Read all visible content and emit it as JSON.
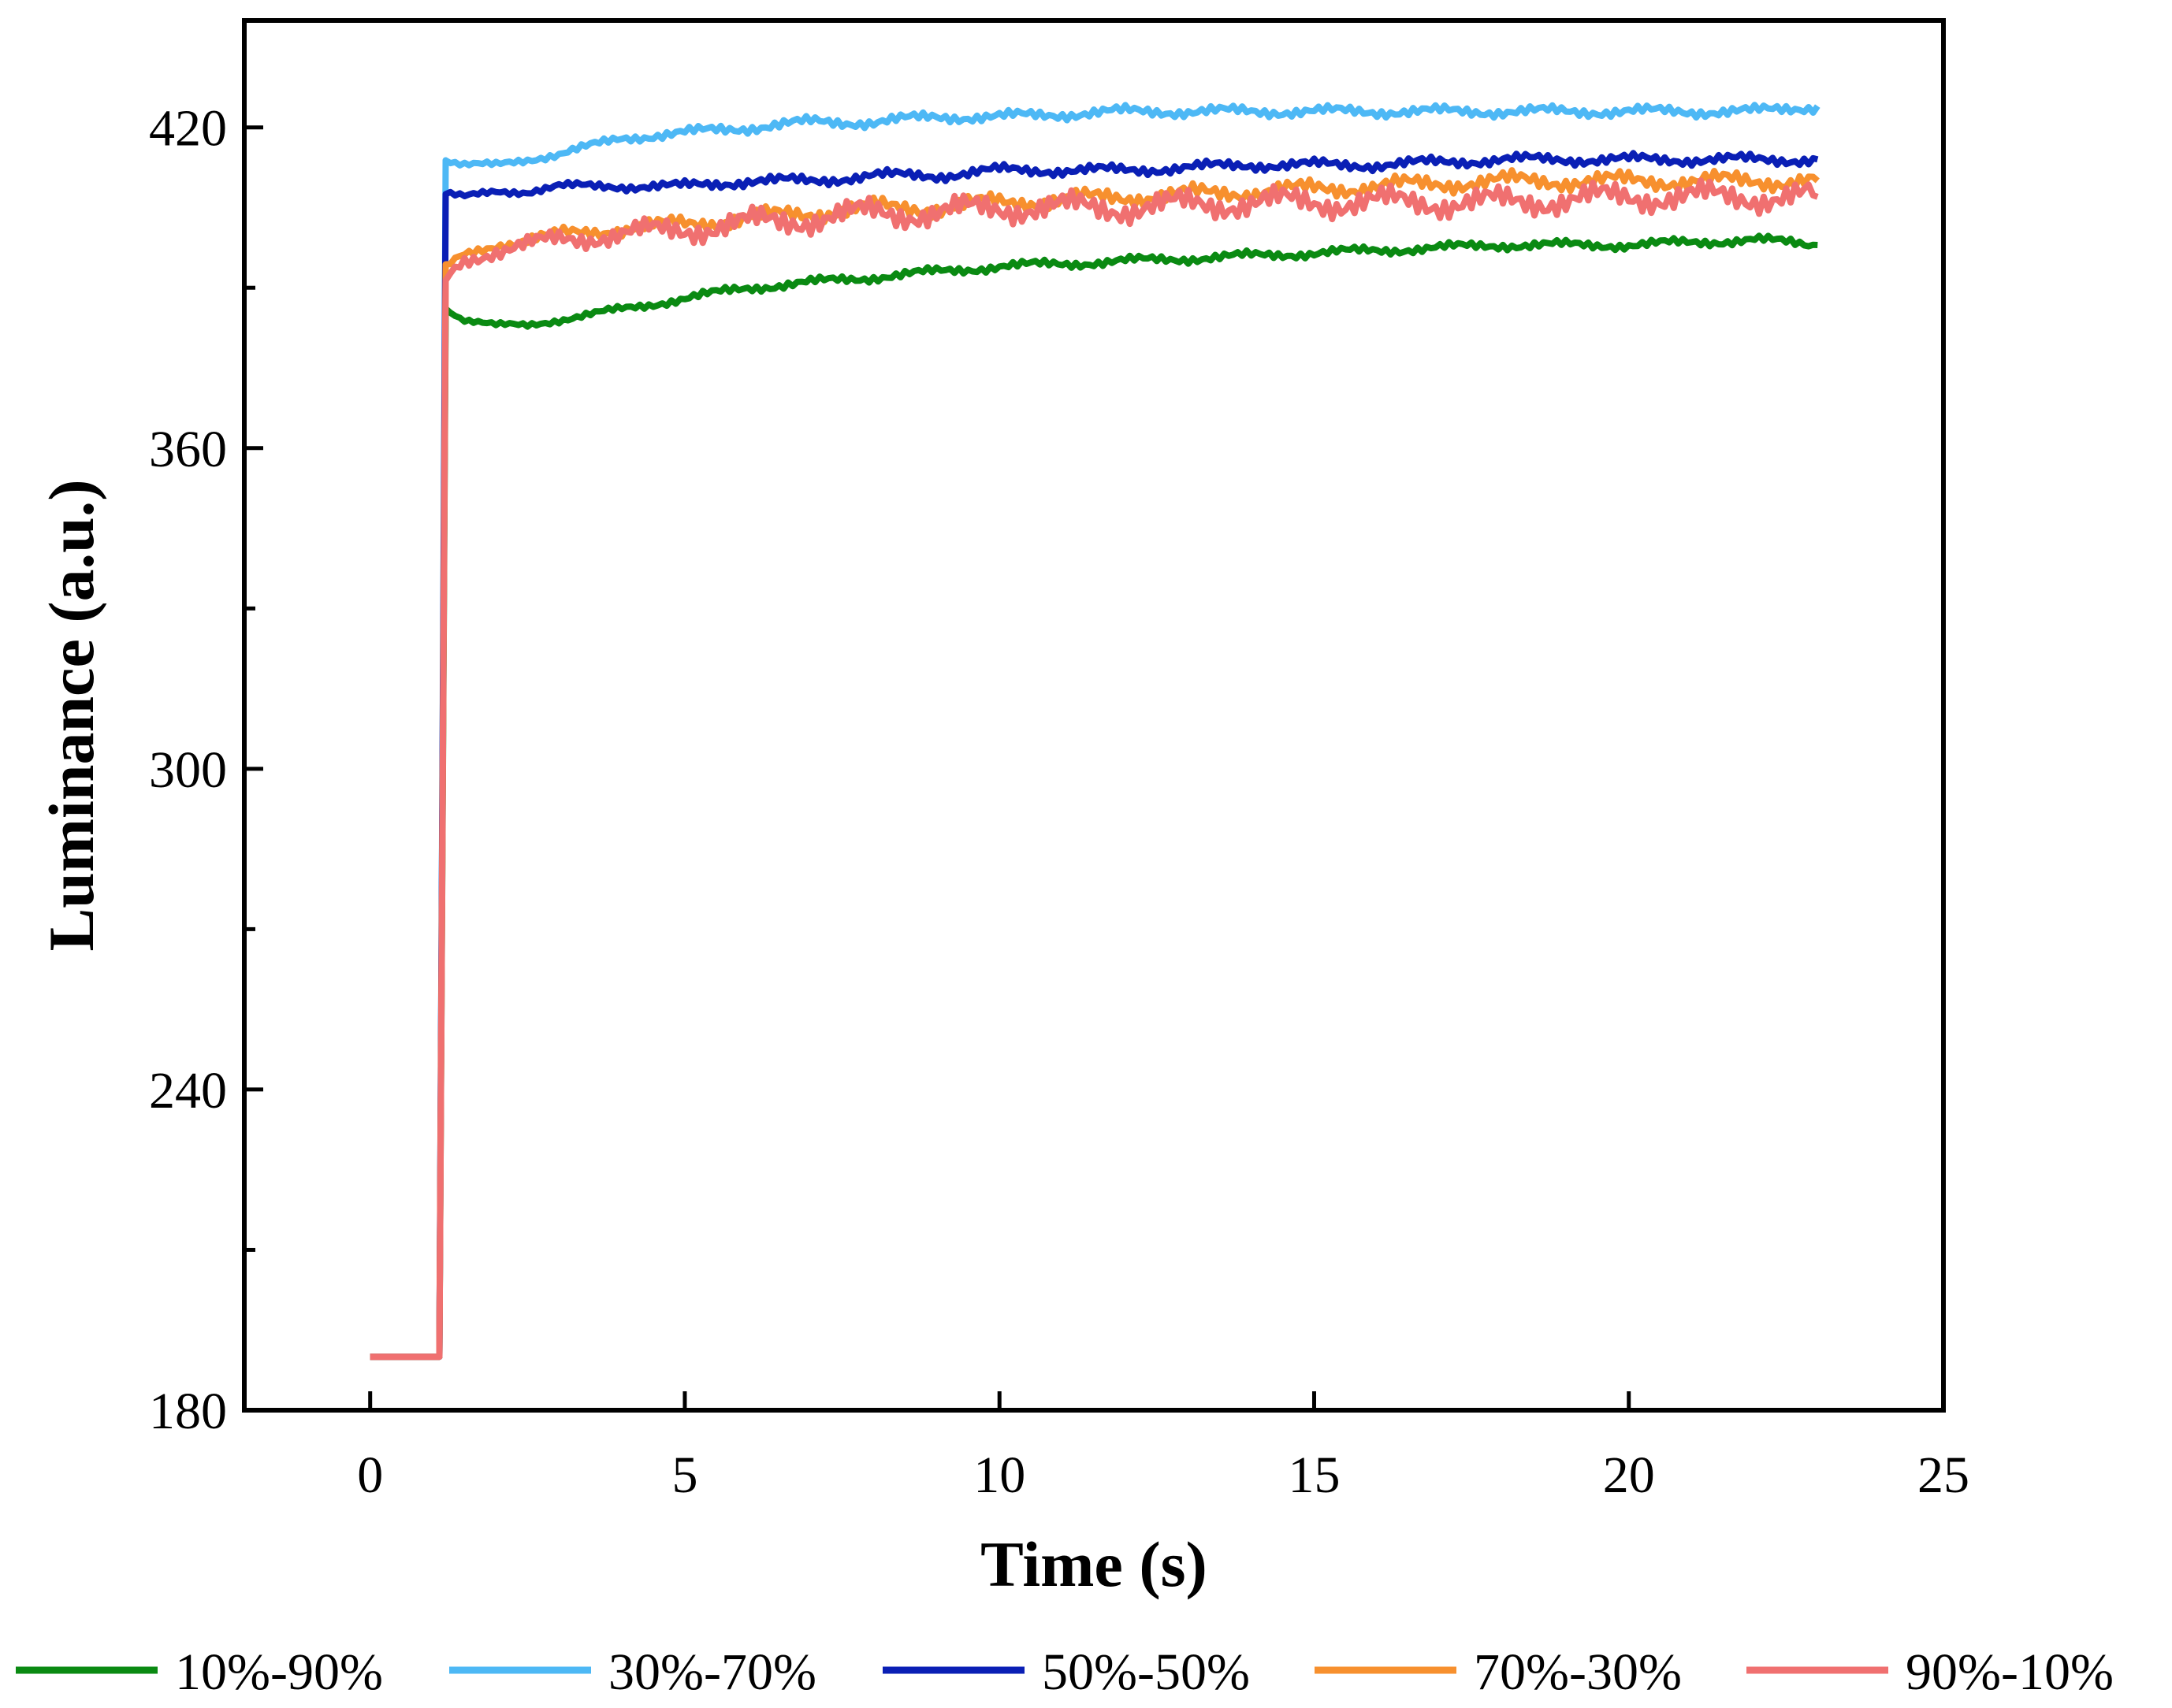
{
  "chart_data": {
    "type": "line",
    "xlabel": "Time (s)",
    "ylabel": "Luminance (a.u.)",
    "xlim": [
      -2,
      25
    ],
    "ylim": [
      180,
      440
    ],
    "xticks": [
      0,
      5,
      10,
      15,
      20,
      25
    ],
    "xtick_labels": [
      "0",
      "5",
      "10",
      "15",
      "20",
      "25"
    ],
    "yticks": [
      180,
      240,
      300,
      360,
      420
    ],
    "ytick_labels": [
      "180",
      "240",
      "300",
      "360",
      "420"
    ],
    "y_minor_ticks": [
      210,
      270,
      330,
      390
    ],
    "legend_position": "bottom",
    "grid": false,
    "series": [
      {
        "name": "10%-90%",
        "color": "#0a8a12",
        "x": [
          0,
          1.1,
          1.2,
          1.5,
          2,
          2.5,
          3,
          4,
          5,
          6,
          7,
          8,
          9,
          10,
          12,
          14,
          16,
          18,
          20,
          22,
          23
        ],
        "y": [
          190,
          190,
          386,
          384,
          383,
          383,
          384,
          386,
          388,
          390,
          391,
          392,
          393,
          394,
          395,
          396,
          397,
          398,
          398,
          399,
          398
        ]
      },
      {
        "name": "30%-70%",
        "color": "#4db8f5",
        "x": [
          0,
          1.1,
          1.2,
          1.5,
          2,
          2.5,
          3,
          4,
          5,
          6,
          7,
          8,
          9,
          10,
          12,
          14,
          16,
          18,
          20,
          22,
          23
        ],
        "y": [
          190,
          190,
          414,
          413,
          413,
          414,
          415,
          418,
          419,
          420,
          421,
          421,
          422,
          422,
          423,
          423,
          423,
          423,
          423,
          423,
          424
        ]
      },
      {
        "name": "50%-50%",
        "color": "#0a1fb5",
        "x": [
          0,
          1.1,
          1.2,
          1.5,
          2,
          2.5,
          3,
          4,
          5,
          6,
          7,
          8,
          9,
          10,
          12,
          14,
          16,
          18,
          20,
          22,
          23
        ],
        "y": [
          190,
          190,
          408,
          407,
          408,
          408,
          409,
          409,
          409,
          410,
          410,
          411,
          411,
          412,
          412,
          413,
          413,
          414,
          414,
          414,
          414
        ]
      },
      {
        "name": "70%-30%",
        "color": "#f7902e",
        "x": [
          0,
          1.1,
          1.2,
          1.5,
          2,
          2.5,
          3,
          4,
          5,
          6,
          7,
          8,
          9,
          10,
          12,
          14,
          16,
          18,
          20,
          22,
          23
        ],
        "y": [
          190,
          190,
          394,
          396,
          398,
          399,
          400,
          401,
          402,
          403,
          404,
          405,
          405,
          406,
          407,
          408,
          409,
          410,
          410,
          410,
          410
        ]
      },
      {
        "name": "90%-10%",
        "color": "#f07070",
        "x": [
          0,
          1.1,
          1.2,
          1.5,
          2,
          2.5,
          3,
          4,
          5,
          6,
          7,
          8,
          9,
          10,
          12,
          14,
          16,
          18,
          20,
          22,
          23
        ],
        "y": [
          190,
          190,
          391,
          395,
          397,
          398,
          399,
          400,
          401,
          402,
          403,
          404,
          404,
          405,
          405,
          406,
          406,
          406,
          407,
          407,
          407
        ]
      }
    ]
  }
}
